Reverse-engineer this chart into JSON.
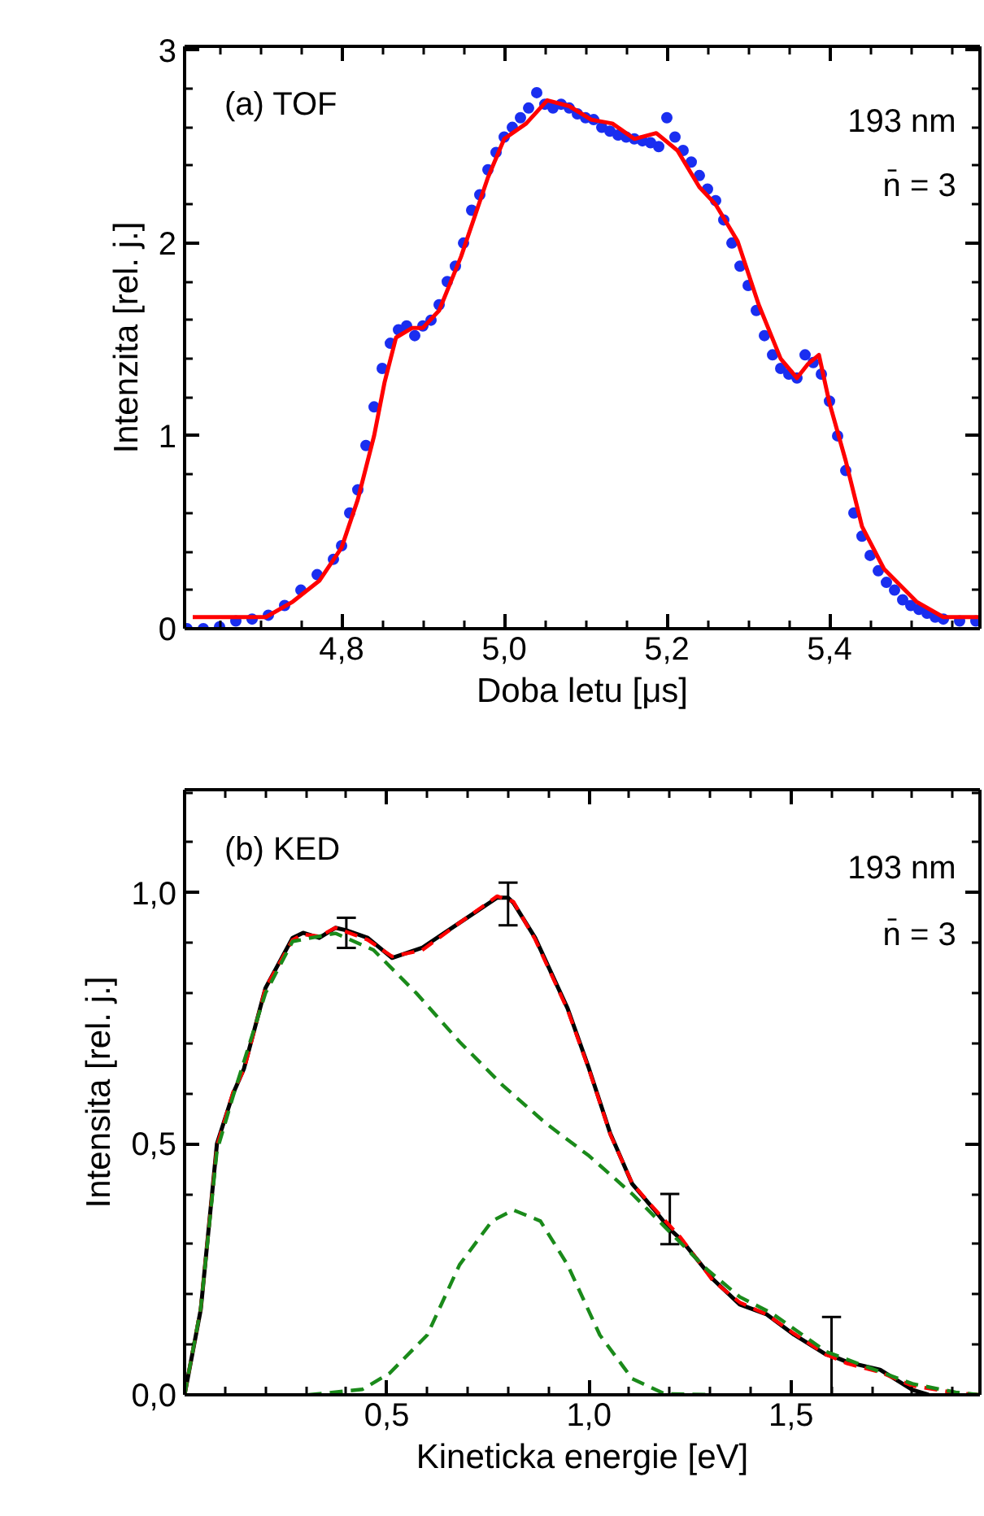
{
  "chart_data": [
    {
      "type": "line",
      "xlabel": "Doba letu [μs]",
      "ylabel": "Intenzita [rel. j.]",
      "annotations": [
        "(a)  TOF",
        "193 nm",
        "n̄ = 3"
      ],
      "xlim": [
        4.607,
        5.585
      ],
      "ylim": [
        0,
        3.02
      ],
      "xticks": [
        {
          "value": 4.8,
          "label": "4,8"
        },
        {
          "value": 5.0,
          "label": "5,0"
        },
        {
          "value": 5.2,
          "label": "5,2"
        },
        {
          "value": 5.4,
          "label": "5,4"
        }
      ],
      "yticks": [
        0,
        1,
        2,
        3
      ],
      "series": [
        {
          "type": "scatter",
          "marker": "circle",
          "color": "#1a2ef0",
          "x": [
            4.61,
            4.63,
            4.65,
            4.67,
            4.69,
            4.71,
            4.73,
            4.75,
            4.77,
            4.79,
            4.8,
            4.81,
            4.82,
            4.83,
            4.84,
            4.85,
            4.86,
            4.87,
            4.88,
            4.89,
            4.9,
            4.91,
            4.92,
            4.93,
            4.94,
            4.95,
            4.96,
            4.97,
            4.98,
            4.99,
            5.0,
            5.01,
            5.02,
            5.03,
            5.04,
            5.05,
            5.06,
            5.07,
            5.08,
            5.09,
            5.1,
            5.11,
            5.12,
            5.13,
            5.14,
            5.15,
            5.16,
            5.17,
            5.18,
            5.19,
            5.2,
            5.21,
            5.22,
            5.23,
            5.24,
            5.25,
            5.26,
            5.27,
            5.28,
            5.29,
            5.3,
            5.31,
            5.32,
            5.33,
            5.34,
            5.35,
            5.36,
            5.37,
            5.38,
            5.39,
            5.4,
            5.41,
            5.42,
            5.43,
            5.44,
            5.45,
            5.46,
            5.47,
            5.48,
            5.49,
            5.5,
            5.51,
            5.52,
            5.53,
            5.54,
            5.56,
            5.58
          ],
          "values": [
            0.0,
            0.0,
            0.01,
            0.04,
            0.05,
            0.07,
            0.12,
            0.2,
            0.28,
            0.36,
            0.43,
            0.6,
            0.72,
            0.95,
            1.15,
            1.35,
            1.48,
            1.55,
            1.57,
            1.52,
            1.57,
            1.6,
            1.68,
            1.8,
            1.88,
            2.0,
            2.17,
            2.25,
            2.38,
            2.47,
            2.55,
            2.6,
            2.65,
            2.7,
            2.78,
            2.72,
            2.7,
            2.72,
            2.7,
            2.67,
            2.65,
            2.64,
            2.6,
            2.58,
            2.56,
            2.55,
            2.54,
            2.53,
            2.52,
            2.5,
            2.65,
            2.55,
            2.48,
            2.42,
            2.35,
            2.28,
            2.22,
            2.12,
            2.0,
            1.88,
            1.78,
            1.65,
            1.52,
            1.42,
            1.35,
            1.32,
            1.3,
            1.42,
            1.38,
            1.32,
            1.18,
            1.0,
            0.82,
            0.6,
            0.48,
            0.38,
            0.3,
            0.24,
            0.2,
            0.15,
            0.12,
            0.1,
            0.08,
            0.06,
            0.05,
            0.04,
            0.04
          ]
        },
        {
          "color": "#ff0000",
          "line_style": "solid",
          "x": [
            4.617,
            4.707,
            4.74,
            4.773,
            4.8,
            4.82,
            4.84,
            4.853,
            4.867,
            4.887,
            4.9,
            4.92,
            4.947,
            4.98,
            5.0,
            5.027,
            5.053,
            5.08,
            5.107,
            5.133,
            5.16,
            5.187,
            5.213,
            5.24,
            5.26,
            5.287,
            5.313,
            5.34,
            5.36,
            5.373,
            5.387,
            5.4,
            5.42,
            5.44,
            5.467,
            5.507,
            5.54,
            5.585
          ],
          "values": [
            0.06,
            0.06,
            0.14,
            0.25,
            0.42,
            0.67,
            1.0,
            1.28,
            1.51,
            1.56,
            1.56,
            1.65,
            1.93,
            2.34,
            2.54,
            2.62,
            2.74,
            2.71,
            2.64,
            2.62,
            2.54,
            2.57,
            2.48,
            2.29,
            2.2,
            2.01,
            1.68,
            1.4,
            1.3,
            1.37,
            1.42,
            1.17,
            0.87,
            0.53,
            0.31,
            0.14,
            0.06,
            0.06
          ]
        }
      ]
    },
    {
      "type": "line",
      "xlabel": "Kineticka energie [eV]",
      "ylabel": "Intensita [rel. j.]",
      "annotations": [
        "(b)  KED",
        "193 nm",
        "n̄ = 3"
      ],
      "xlim": [
        0,
        1.967
      ],
      "ylim": [
        0,
        1.205
      ],
      "xticks": [
        {
          "value": 0.5,
          "label": "0,5"
        },
        {
          "value": 1.0,
          "label": "1,0"
        },
        {
          "value": 1.5,
          "label": "1,5"
        }
      ],
      "yticks": [
        {
          "value": 0.0,
          "label": "0,0"
        },
        {
          "value": 0.5,
          "label": "0,5"
        },
        {
          "value": 1.0,
          "label": "1,0"
        }
      ],
      "series": [
        {
          "color": "#000000",
          "line_style": "solid",
          "x": [
            0,
            0.04,
            0.08,
            0.12,
            0.147,
            0.2,
            0.267,
            0.293,
            0.333,
            0.373,
            0.4,
            0.453,
            0.513,
            0.587,
            0.68,
            0.773,
            0.8,
            0.813,
            0.867,
            0.947,
            1.0,
            1.053,
            1.107,
            1.16,
            1.2,
            1.227,
            1.307,
            1.373,
            1.44,
            1.507,
            1.587,
            1.6,
            1.64,
            1.72,
            1.8,
            1.84
          ],
          "values": [
            0,
            0.17,
            0.5,
            0.6,
            0.65,
            0.81,
            0.91,
            0.92,
            0.91,
            0.93,
            0.925,
            0.91,
            0.87,
            0.89,
            0.94,
            0.99,
            0.99,
            0.98,
            0.91,
            0.77,
            0.65,
            0.52,
            0.42,
            0.37,
            0.33,
            0.31,
            0.23,
            0.18,
            0.16,
            0.12,
            0.08,
            0.078,
            0.065,
            0.05,
            0.01,
            0
          ],
          "errors": [
            null,
            null,
            null,
            null,
            null,
            null,
            null,
            null,
            null,
            null,
            [
              0.89,
              0.95
            ],
            null,
            null,
            null,
            null,
            null,
            [
              0.935,
              1.02
            ],
            null,
            null,
            null,
            null,
            null,
            null,
            null,
            [
              0.3,
              0.4
            ],
            null,
            null,
            null,
            null,
            null,
            null,
            [
              0.0,
              0.155
            ],
            null,
            null,
            null,
            null
          ]
        },
        {
          "color": "#ff0000",
          "line_style": "dashed",
          "x": [
            0,
            0.04,
            0.08,
            0.12,
            0.147,
            0.2,
            0.267,
            0.293,
            0.333,
            0.373,
            0.453,
            0.513,
            0.587,
            0.68,
            0.773,
            0.813,
            0.867,
            0.947,
            1.0,
            1.053,
            1.107,
            1.16,
            1.227,
            1.307,
            1.373,
            1.44,
            1.507,
            1.587,
            1.64,
            1.72,
            1.8,
            1.907,
            1.967
          ],
          "values": [
            0,
            0.173,
            0.495,
            0.603,
            0.648,
            0.81,
            0.906,
            0.917,
            0.913,
            0.93,
            0.906,
            0.873,
            0.885,
            0.94,
            0.993,
            0.982,
            0.907,
            0.767,
            0.648,
            0.518,
            0.421,
            0.372,
            0.313,
            0.227,
            0.184,
            0.16,
            0.122,
            0.08,
            0.062,
            0.045,
            0.018,
            0.004,
            0
          ]
        },
        {
          "color": "#1a8a1a",
          "line_style": "dashed",
          "x": [
            0,
            0.04,
            0.08,
            0.12,
            0.2,
            0.267,
            0.373,
            0.467,
            0.573,
            0.68,
            0.787,
            0.893,
            1.0,
            1.107,
            1.187,
            1.293,
            1.373,
            1.453,
            1.587,
            1.693,
            1.8,
            1.907,
            1.967
          ],
          "values": [
            0,
            0.173,
            0.486,
            0.595,
            0.8,
            0.903,
            0.919,
            0.886,
            0.8,
            0.703,
            0.616,
            0.541,
            0.476,
            0.4,
            0.335,
            0.249,
            0.195,
            0.162,
            0.086,
            0.054,
            0.022,
            0.005,
            0
          ]
        },
        {
          "color": "#1a8a1a",
          "line_style": "dashed",
          "x": [
            0.307,
            0.44,
            0.507,
            0.6,
            0.68,
            0.76,
            0.813,
            0.88,
            0.947,
            1.027,
            1.107,
            1.187,
            1.307
          ],
          "values": [
            0,
            0.011,
            0.043,
            0.119,
            0.259,
            0.346,
            0.368,
            0.346,
            0.259,
            0.119,
            0.032,
            0.002,
            0
          ]
        }
      ]
    }
  ]
}
